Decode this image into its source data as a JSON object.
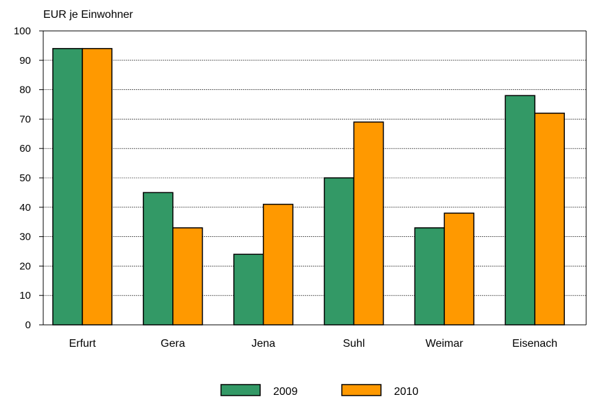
{
  "chart_data": {
    "type": "bar",
    "ylabel": "EUR je Einwohner",
    "categories": [
      "Erfurt",
      "Gera",
      "Jena",
      "Suhl",
      "Weimar",
      "Eisenach"
    ],
    "series": [
      {
        "name": "2009",
        "values": [
          94,
          45,
          24,
          50,
          33,
          78
        ],
        "color": "#339966"
      },
      {
        "name": "2010",
        "values": [
          94,
          33,
          41,
          69,
          38,
          72
        ],
        "color": "#ff9900"
      }
    ],
    "ylim": [
      0,
      100
    ],
    "yticks": [
      0,
      10,
      20,
      30,
      40,
      50,
      60,
      70,
      80,
      90,
      100
    ],
    "grid": true,
    "legend": "bottom-center"
  }
}
